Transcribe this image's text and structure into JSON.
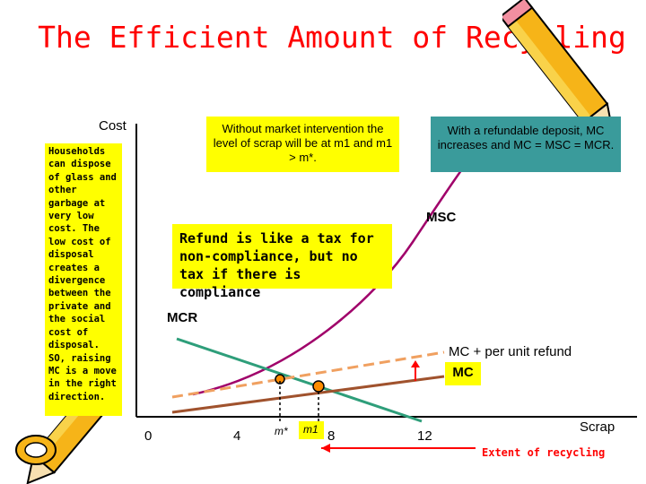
{
  "title": "The Efficient Amount of Recycling",
  "y_axis_label": "Cost",
  "x_axis_label": "Scrap",
  "side_note": "Households can dispose of glass and other garbage at very low cost. The low cost of disposal creates a divergence between the private and the social cost of disposal. SO, raising MC is a move in the right direction.",
  "note_without_intervention": "Without market intervention the level of scrap will be at m1 and m1 > m*.",
  "note_deposit": "With a refundable deposit, MC increases and MC = MSC = MCR.",
  "refund_note": "Refund is like a tax for non-compliance, but no tax if there is compliance",
  "curve_labels": {
    "msc": "MSC",
    "mcr": "MCR",
    "mc_plus_refund": "MC + per unit refund",
    "mc": "MC"
  },
  "x_ticks": [
    "0",
    "4",
    "m*",
    "m1",
    "8",
    "12"
  ],
  "extent_label": "Extent of recycling",
  "colors": {
    "title": "#ff0000",
    "yellow_box": "#ffff00",
    "teal_box": "#3a9b9b",
    "msc_curve": "#a0006a",
    "mcr_curve": "#2e9e7a",
    "mc_curve": "#a0522d",
    "mc_refund_curve": "#f0a060",
    "arrow": "#ff0000",
    "point": "#ff8c00"
  },
  "decorations": [
    "pencil-icon"
  ]
}
